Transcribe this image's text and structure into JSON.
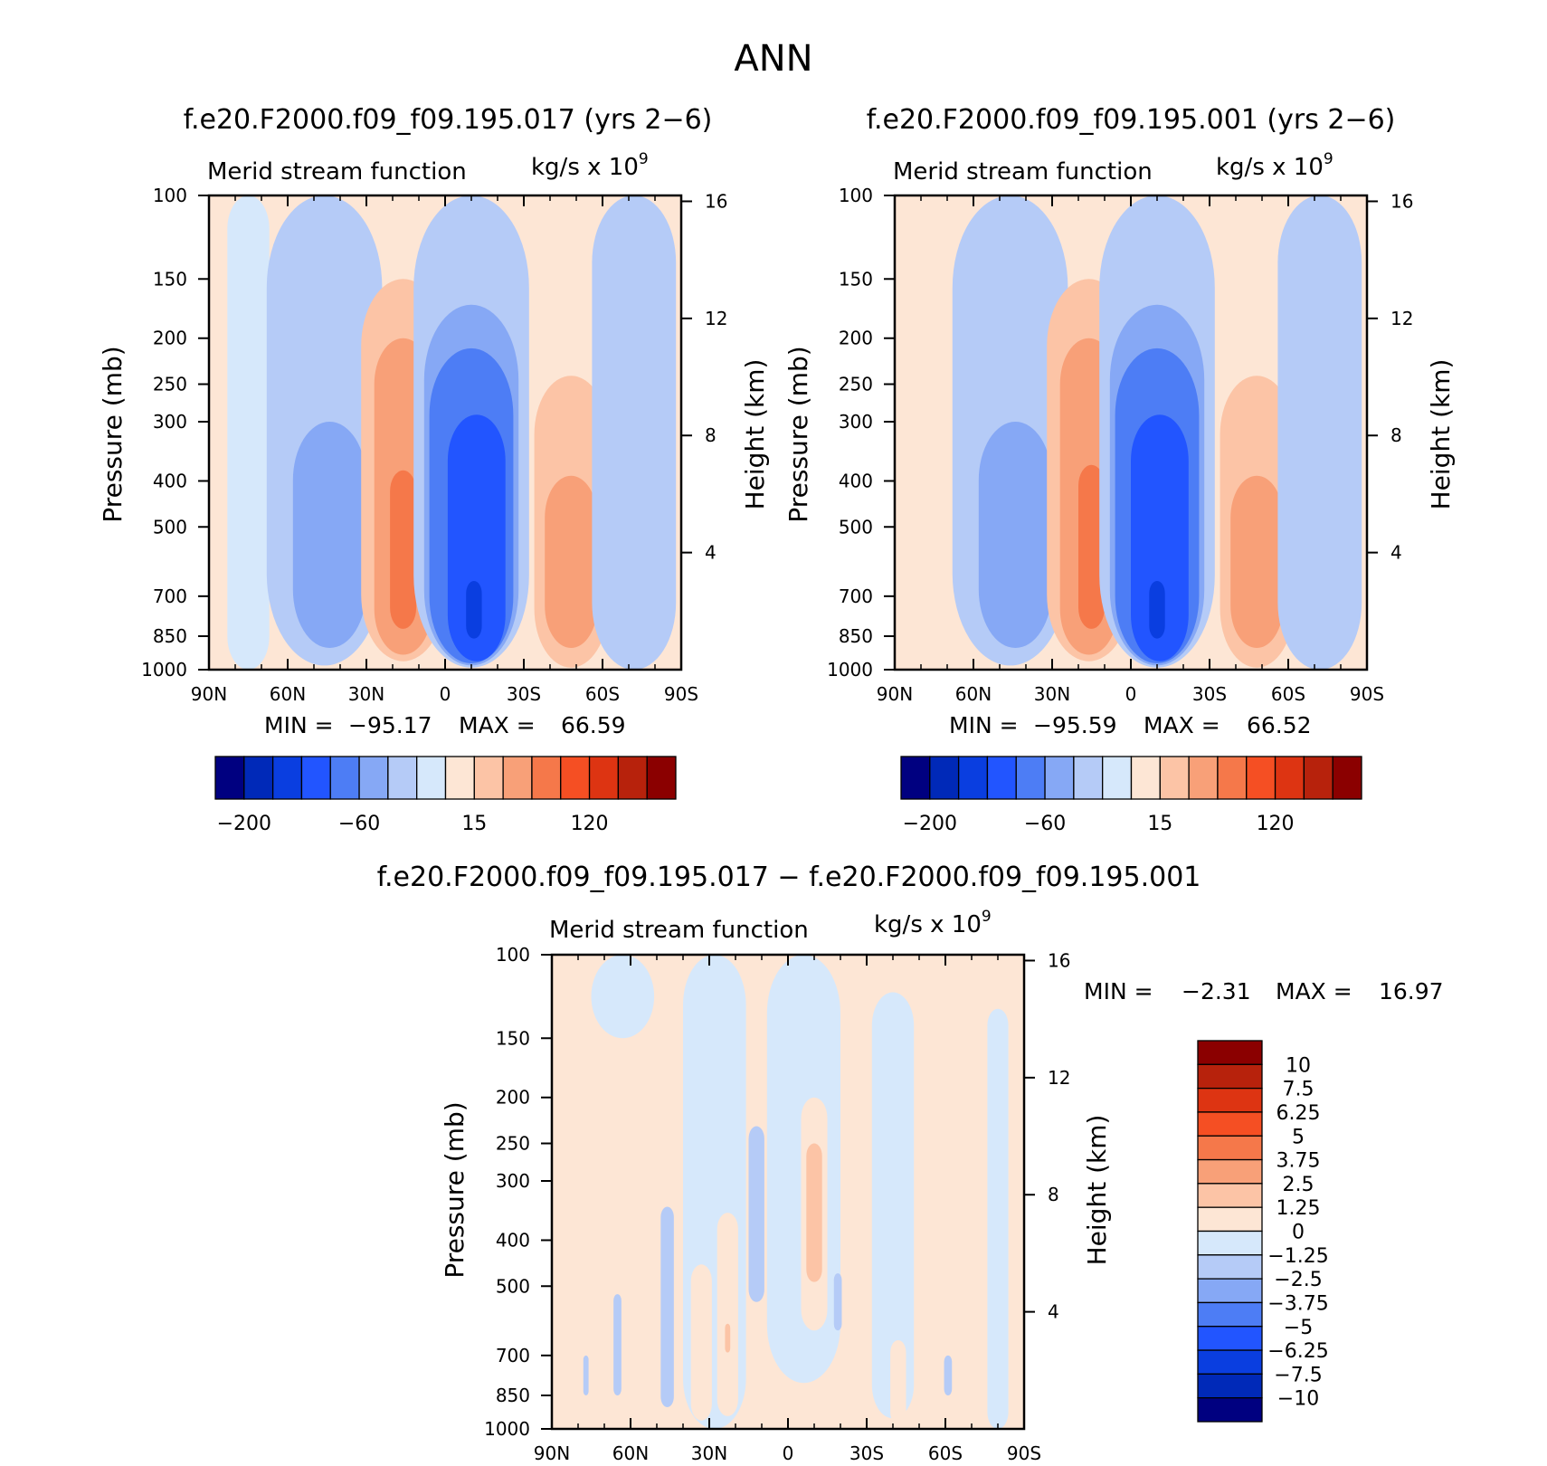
{
  "figure": {
    "title": "ANN"
  },
  "chart_data": [
    {
      "type": "heatmap",
      "panel": "top-left",
      "title": "f.e20.F2000.f09_f09.195.017 (yrs 2−6)",
      "subtitle_left": "Merid stream function",
      "subtitle_right": "kg/s x 10",
      "subtitle_exp": "9",
      "ylabel": "Pressure (mb)",
      "ylabel_right": "Height (km)",
      "x_ticks": [
        -90,
        -60,
        -30,
        0,
        30,
        60,
        90
      ],
      "x_tick_labels": [
        "90N",
        "60N",
        "30N",
        "0",
        "30S",
        "60S",
        "90S"
      ],
      "y_ticks": [
        100,
        150,
        200,
        250,
        300,
        400,
        500,
        700,
        850,
        1000
      ],
      "y_tick_labels": [
        "100",
        "150",
        "200",
        "250",
        "300",
        "400",
        "500",
        "700",
        "850",
        "1000"
      ],
      "height_ticks": [
        16,
        12,
        8,
        4
      ],
      "height_tick_labels": [
        "16",
        "12",
        "8",
        "4"
      ],
      "ylim": [
        1000,
        100
      ],
      "stats": {
        "min_label": "MIN =",
        "min": "−95.17",
        "max_label": "MAX =",
        "max": "66.59"
      },
      "colorbar": {
        "orientation": "horizontal",
        "labels": [
          "−200",
          "−60",
          "15",
          "120"
        ]
      },
      "cells": [
        {
          "lat": -75,
          "p": 600,
          "w": 8,
          "h0": 1000,
          "h1": 100,
          "c": 0
        },
        {
          "lat": -46,
          "p": 600,
          "w": 22,
          "h0": 980,
          "h1": 100,
          "c": 1
        },
        {
          "lat": -44,
          "p": 600,
          "w": 14,
          "h0": 900,
          "h1": 300,
          "c": 2
        },
        {
          "lat": -16,
          "p": 600,
          "w": 16,
          "h0": 960,
          "h1": 150,
          "c": 3
        },
        {
          "lat": -16,
          "p": 600,
          "w": 11,
          "h0": 930,
          "h1": 200,
          "c": 4
        },
        {
          "lat": -16,
          "p": 600,
          "w": 5,
          "h0": 820,
          "h1": 380,
          "c": 5
        },
        {
          "lat": 10,
          "p": 600,
          "w": 22,
          "h0": 990,
          "h1": 100,
          "c": 1
        },
        {
          "lat": 10,
          "p": 600,
          "w": 18,
          "h0": 980,
          "h1": 170,
          "c": 2
        },
        {
          "lat": 10,
          "p": 600,
          "w": 16,
          "h0": 970,
          "h1": 210,
          "c": 6
        },
        {
          "lat": 12,
          "p": 600,
          "w": 11,
          "h0": 960,
          "h1": 290,
          "c": 7
        },
        {
          "lat": 11,
          "p": 750,
          "w": 3,
          "h0": 860,
          "h1": 650,
          "c": 8
        },
        {
          "lat": 48,
          "p": 600,
          "w": 14,
          "h0": 990,
          "h1": 240,
          "c": 3
        },
        {
          "lat": 48,
          "p": 600,
          "w": 10,
          "h0": 900,
          "h1": 390,
          "c": 4
        },
        {
          "lat": 72,
          "p": 600,
          "w": 16,
          "h0": 1000,
          "h1": 100,
          "c": 1
        }
      ]
    },
    {
      "type": "heatmap",
      "panel": "top-right",
      "title": "f.e20.F2000.f09_f09.195.001 (yrs 2−6)",
      "subtitle_left": "Merid stream function",
      "subtitle_right": "kg/s x 10",
      "subtitle_exp": "9",
      "ylabel": "Pressure (mb)",
      "ylabel_right": "Height (km)",
      "x_ticks": [
        -90,
        -60,
        -30,
        0,
        30,
        60,
        90
      ],
      "x_tick_labels": [
        "90N",
        "60N",
        "30N",
        "0",
        "30S",
        "60S",
        "90S"
      ],
      "y_ticks": [
        100,
        150,
        200,
        250,
        300,
        400,
        500,
        700,
        850,
        1000
      ],
      "y_tick_labels": [
        "100",
        "150",
        "200",
        "250",
        "300",
        "400",
        "500",
        "700",
        "850",
        "1000"
      ],
      "height_ticks": [
        16,
        12,
        8,
        4
      ],
      "height_tick_labels": [
        "16",
        "12",
        "8",
        "4"
      ],
      "ylim": [
        1000,
        100
      ],
      "stats": {
        "min_label": "MIN =",
        "min": "−95.59",
        "max_label": "MAX =",
        "max": "66.52"
      },
      "colorbar": {
        "orientation": "horizontal",
        "labels": [
          "−200",
          "−60",
          "15",
          "120"
        ]
      },
      "cells": [
        {
          "lat": -46,
          "p": 600,
          "w": 22,
          "h0": 980,
          "h1": 100,
          "c": 1
        },
        {
          "lat": -44,
          "p": 600,
          "w": 14,
          "h0": 900,
          "h1": 300,
          "c": 2
        },
        {
          "lat": -16,
          "p": 600,
          "w": 16,
          "h0": 960,
          "h1": 150,
          "c": 3
        },
        {
          "lat": -16,
          "p": 600,
          "w": 11,
          "h0": 930,
          "h1": 200,
          "c": 4
        },
        {
          "lat": -15,
          "p": 600,
          "w": 5,
          "h0": 820,
          "h1": 370,
          "c": 5
        },
        {
          "lat": 10,
          "p": 600,
          "w": 22,
          "h0": 990,
          "h1": 100,
          "c": 1
        },
        {
          "lat": 10,
          "p": 600,
          "w": 18,
          "h0": 980,
          "h1": 170,
          "c": 2
        },
        {
          "lat": 10,
          "p": 600,
          "w": 16,
          "h0": 970,
          "h1": 210,
          "c": 6
        },
        {
          "lat": 11,
          "p": 600,
          "w": 11,
          "h0": 960,
          "h1": 290,
          "c": 7
        },
        {
          "lat": 10,
          "p": 750,
          "w": 3,
          "h0": 860,
          "h1": 650,
          "c": 8
        },
        {
          "lat": 48,
          "p": 600,
          "w": 14,
          "h0": 990,
          "h1": 240,
          "c": 3
        },
        {
          "lat": 48,
          "p": 600,
          "w": 10,
          "h0": 900,
          "h1": 390,
          "c": 4
        },
        {
          "lat": 72,
          "p": 600,
          "w": 16,
          "h0": 1000,
          "h1": 100,
          "c": 1
        }
      ]
    },
    {
      "type": "heatmap",
      "panel": "bottom",
      "title": "f.e20.F2000.f09_f09.195.017 − f.e20.F2000.f09_f09.195.001",
      "subtitle_left": "Merid stream function",
      "subtitle_right": "kg/s x 10",
      "subtitle_exp": "9",
      "ylabel": "Pressure (mb)",
      "ylabel_right": "Height (km)",
      "x_ticks": [
        -90,
        -60,
        -30,
        0,
        30,
        60,
        90
      ],
      "x_tick_labels": [
        "90N",
        "60N",
        "30N",
        "0",
        "30S",
        "60S",
        "90S"
      ],
      "y_ticks": [
        100,
        150,
        200,
        250,
        300,
        400,
        500,
        700,
        850,
        1000
      ],
      "y_tick_labels": [
        "100",
        "150",
        "200",
        "250",
        "300",
        "400",
        "500",
        "700",
        "850",
        "1000"
      ],
      "height_ticks": [
        16,
        12,
        8,
        4
      ],
      "height_tick_labels": [
        "16",
        "12",
        "8",
        "4"
      ],
      "ylim": [
        1000,
        100
      ],
      "stats": {
        "min_label": "MIN =",
        "min": "−2.31",
        "max_label": "MAX =",
        "max": "16.97"
      },
      "colorbar": {
        "orientation": "vertical",
        "labels": [
          "10",
          "7.5",
          "6.25",
          "5",
          "3.75",
          "2.5",
          "1.25",
          "0",
          "−1.25",
          "−2.5",
          "−3.75",
          "−5",
          "−6.25",
          "−7.5",
          "−10"
        ]
      },
      "cells": [
        {
          "lat": -63,
          "p": 500,
          "w": 12,
          "h0": 150,
          "h1": 100,
          "c": 9
        },
        {
          "lat": -28,
          "p": 600,
          "w": 12,
          "h0": 1000,
          "h1": 100,
          "c": 9
        },
        {
          "lat": 6,
          "p": 600,
          "w": 14,
          "h0": 800,
          "h1": 100,
          "c": 9
        },
        {
          "lat": 40,
          "p": 600,
          "w": 8,
          "h0": 950,
          "h1": 120,
          "c": 9
        },
        {
          "lat": 80,
          "p": 600,
          "w": 4,
          "h0": 1000,
          "h1": 130,
          "c": 9
        },
        {
          "lat": -46,
          "p": 600,
          "w": 2.5,
          "h0": 900,
          "h1": 340,
          "c": 1
        },
        {
          "lat": -65,
          "p": 600,
          "w": 1.5,
          "h0": 850,
          "h1": 520,
          "c": 1
        },
        {
          "lat": -77,
          "p": 600,
          "w": 1,
          "h0": 850,
          "h1": 700,
          "c": 1
        },
        {
          "lat": -12,
          "p": 600,
          "w": 3,
          "h0": 540,
          "h1": 230,
          "c": 1
        },
        {
          "lat": 19,
          "p": 600,
          "w": 1.5,
          "h0": 620,
          "h1": 470,
          "c": 1
        },
        {
          "lat": 61,
          "p": 600,
          "w": 1.5,
          "h0": 850,
          "h1": 700,
          "c": 1
        },
        {
          "lat": -33,
          "p": 600,
          "w": 4,
          "h0": 960,
          "h1": 450,
          "c": 10
        },
        {
          "lat": -23,
          "p": 600,
          "w": 4,
          "h0": 940,
          "h1": 350,
          "c": 10
        },
        {
          "lat": 10,
          "p": 600,
          "w": 5,
          "h0": 620,
          "h1": 200,
          "c": 10
        },
        {
          "lat": 10,
          "p": 600,
          "w": 3,
          "h0": 490,
          "h1": 250,
          "c": 3
        },
        {
          "lat": -23,
          "p": 600,
          "w": 1,
          "h0": 690,
          "h1": 600,
          "c": 3
        },
        {
          "lat": 42,
          "p": 600,
          "w": 3,
          "h0": 980,
          "h1": 650,
          "c": 10
        }
      ]
    }
  ],
  "colors": {
    "top_colorbar": [
      "#000080",
      "#0029b8",
      "#0a3ee0",
      "#2255ff",
      "#4d7df5",
      "#86a8f5",
      "#b5cbf7",
      "#d6e8fb",
      "#fde6d5",
      "#fcc4a6",
      "#f8a078",
      "#f5784a",
      "#f54f23",
      "#dd3412",
      "#b7220c",
      "#8b0000"
    ],
    "diff_colorbar": [
      "#8b0000",
      "#b7220c",
      "#dd3412",
      "#f54f23",
      "#f5784a",
      "#f8a078",
      "#fcc4a6",
      "#fde6d5",
      "#d6e8fb",
      "#b5cbf7",
      "#86a8f5",
      "#4d7df5",
      "#2255ff",
      "#0a3ee0",
      "#0029b8",
      "#000080"
    ],
    "field_levels": [
      "#d6e8fb",
      "#b5cbf7",
      "#86a8f5",
      "#fcc4a6",
      "#f8a078",
      "#f5784a",
      "#4d7df5",
      "#2255ff",
      "#0a3ee0",
      "#d6e8fb",
      "#fde6d5"
    ],
    "positive_background": "#fde6d5"
  }
}
